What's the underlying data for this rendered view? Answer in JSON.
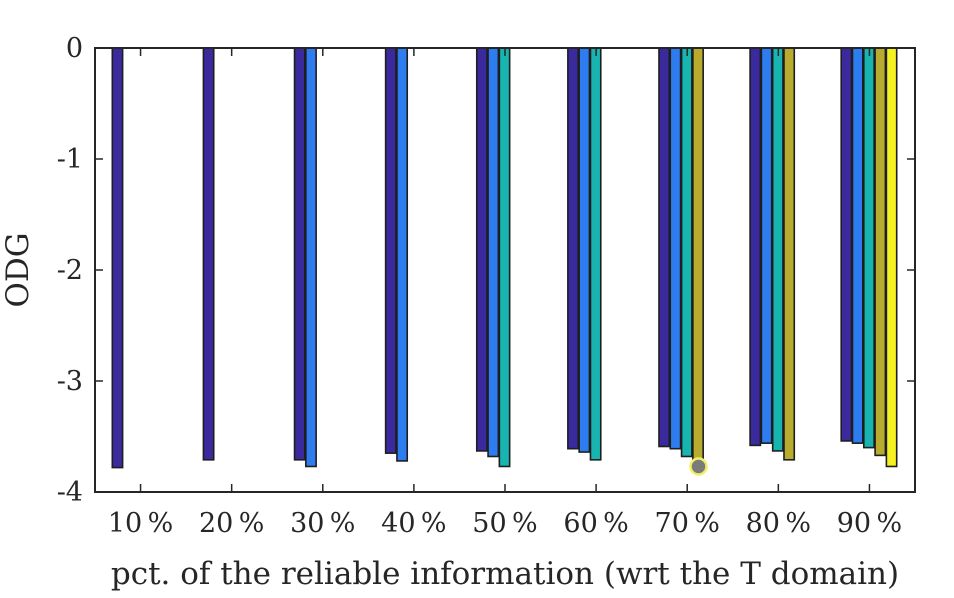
{
  "chart_data": {
    "type": "bar",
    "title": "",
    "xlabel": "pct. of the reliable information (wrt the T domain)",
    "ylabel": "ODG",
    "ylim": [
      -4,
      0
    ],
    "yticks": [
      "0",
      "-1",
      "-2",
      "-3",
      "-4"
    ],
    "ytick_values": [
      0,
      -1,
      -2,
      -3,
      -4
    ],
    "categories": [
      "10 %",
      "20 %",
      "30 %",
      "40 %",
      "50 %",
      "60 %",
      "70 %",
      "80 %",
      "90 %"
    ],
    "grid": false,
    "legend": "none",
    "series": [
      {
        "color": "#3a2a9e",
        "values": [
          -3.78,
          -3.71,
          -3.71,
          -3.65,
          -3.63,
          -3.61,
          -3.59,
          -3.58,
          -3.54
        ]
      },
      {
        "color": "#2e7df0",
        "values": [
          null,
          null,
          -3.77,
          -3.72,
          -3.68,
          -3.64,
          -3.61,
          -3.56,
          -3.56
        ]
      },
      {
        "color": "#18b4b0",
        "values": [
          null,
          null,
          null,
          null,
          -3.77,
          -3.71,
          -3.68,
          -3.63,
          -3.6
        ]
      },
      {
        "color": "#b8ab2e",
        "values": [
          null,
          null,
          null,
          null,
          null,
          null,
          -3.73,
          -3.71,
          -3.67
        ]
      },
      {
        "color": "#f5f020",
        "values": [
          null,
          null,
          null,
          null,
          null,
          null,
          null,
          null,
          -3.77
        ]
      }
    ],
    "annotations": [
      {
        "type": "marker",
        "category": "70 %",
        "series_index": 3,
        "y": -3.77,
        "fill": "#7a7a7a",
        "edge": "#f2ee6a"
      }
    ]
  }
}
